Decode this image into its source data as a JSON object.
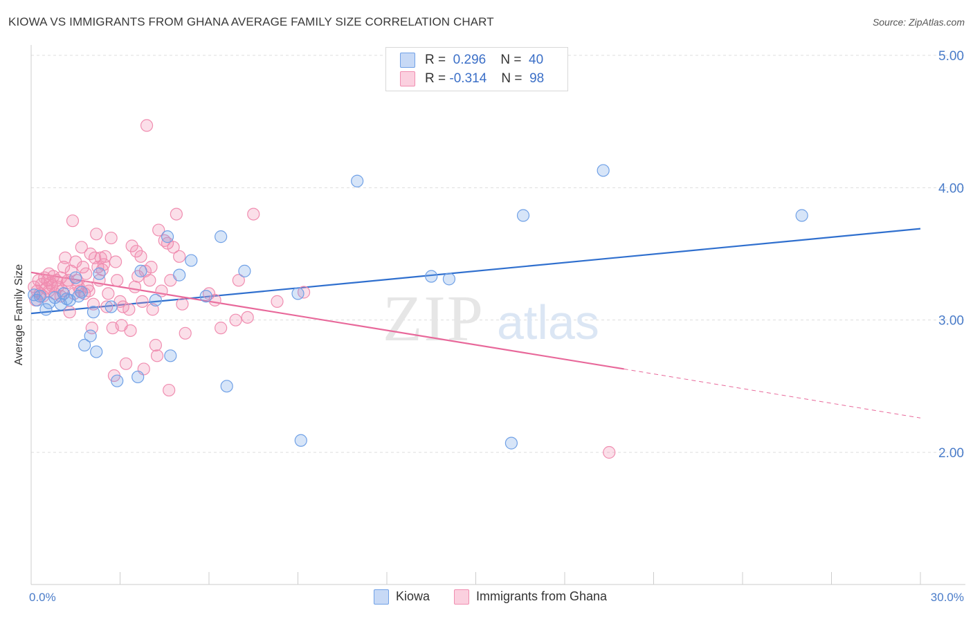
{
  "title": "KIOWA VS IMMIGRANTS FROM GHANA AVERAGE FAMILY SIZE CORRELATION CHART",
  "source": "Source: ZipAtlas.com",
  "watermark": {
    "zip": "ZIP",
    "atlas": "atlas"
  },
  "legend_top": {
    "rows": [
      {
        "r_label": "R =",
        "r_value": "0.296",
        "n_label": "N =",
        "n_value": "40",
        "color": "#6fa0e6"
      },
      {
        "r_label": "R =",
        "r_value": "-0.314",
        "n_label": "N =",
        "n_value": "98",
        "color": "#f08db0"
      }
    ]
  },
  "legend_bottom": [
    {
      "label": "Kiowa",
      "color": "#6fa0e6"
    },
    {
      "label": "Immigrants from Ghana",
      "color": "#f08db0"
    }
  ],
  "chart_data": {
    "type": "scatter",
    "title": "KIOWA VS IMMIGRANTS FROM GHANA AVERAGE FAMILY SIZE CORRELATION CHART",
    "xlabel": "",
    "ylabel": "Average Family Size",
    "xlim": [
      0,
      30
    ],
    "ylim": [
      1.0,
      5.2
    ],
    "x_tick_labels": [
      "0.0%",
      "30.0%"
    ],
    "y_ticks": [
      2.0,
      3.0,
      4.0,
      5.0
    ],
    "y_tick_labels": [
      "2.00",
      "3.00",
      "4.00",
      "5.00"
    ],
    "grid": true,
    "series": [
      {
        "name": "Kiowa",
        "color": "#6fa0e6",
        "points": [
          [
            0.2,
            3.15
          ],
          [
            0.3,
            3.18
          ],
          [
            0.5,
            3.08
          ],
          [
            0.6,
            3.13
          ],
          [
            0.8,
            3.17
          ],
          [
            1.0,
            3.12
          ],
          [
            1.1,
            3.2
          ],
          [
            1.2,
            3.16
          ],
          [
            1.3,
            3.15
          ],
          [
            1.5,
            3.32
          ],
          [
            1.6,
            3.18
          ],
          [
            1.7,
            3.21
          ],
          [
            1.8,
            2.81
          ],
          [
            2.0,
            2.88
          ],
          [
            2.1,
            3.06
          ],
          [
            2.2,
            2.76
          ],
          [
            2.3,
            3.35
          ],
          [
            2.7,
            3.1
          ],
          [
            2.9,
            2.54
          ],
          [
            3.6,
            2.57
          ],
          [
            3.7,
            3.37
          ],
          [
            4.2,
            3.15
          ],
          [
            4.6,
            3.63
          ],
          [
            4.7,
            2.73
          ],
          [
            5.0,
            3.34
          ],
          [
            5.4,
            3.45
          ],
          [
            5.9,
            3.18
          ],
          [
            6.4,
            3.63
          ],
          [
            6.6,
            2.5
          ],
          [
            7.2,
            3.37
          ],
          [
            9.0,
            3.2
          ],
          [
            9.1,
            2.09
          ],
          [
            11.0,
            4.05
          ],
          [
            13.5,
            3.33
          ],
          [
            14.1,
            3.31
          ],
          [
            16.2,
            2.07
          ],
          [
            16.6,
            3.79
          ],
          [
            19.3,
            4.13
          ],
          [
            26.0,
            3.79
          ],
          [
            0.1,
            3.19
          ]
        ]
      },
      {
        "name": "Immigrants from Ghana",
        "color": "#f08db0",
        "points": [
          [
            0.1,
            3.25
          ],
          [
            0.2,
            3.22
          ],
          [
            0.25,
            3.3
          ],
          [
            0.3,
            3.2
          ],
          [
            0.35,
            3.27
          ],
          [
            0.4,
            3.18
          ],
          [
            0.45,
            3.32
          ],
          [
            0.5,
            3.24
          ],
          [
            0.55,
            3.3
          ],
          [
            0.6,
            3.22
          ],
          [
            0.65,
            3.28
          ],
          [
            0.7,
            3.26
          ],
          [
            0.75,
            3.33
          ],
          [
            0.8,
            3.2
          ],
          [
            0.85,
            3.3
          ],
          [
            0.9,
            3.25
          ],
          [
            1.0,
            3.32
          ],
          [
            1.05,
            3.22
          ],
          [
            1.1,
            3.4
          ],
          [
            1.15,
            3.47
          ],
          [
            1.2,
            3.28
          ],
          [
            1.25,
            3.3
          ],
          [
            1.3,
            3.06
          ],
          [
            1.35,
            3.37
          ],
          [
            1.4,
            3.75
          ],
          [
            1.45,
            3.2
          ],
          [
            1.5,
            3.44
          ],
          [
            1.55,
            3.3
          ],
          [
            1.6,
            3.25
          ],
          [
            1.65,
            3.22
          ],
          [
            1.7,
            3.55
          ],
          [
            1.75,
            3.4
          ],
          [
            1.8,
            3.2
          ],
          [
            1.85,
            3.35
          ],
          [
            1.9,
            3.25
          ],
          [
            1.95,
            3.22
          ],
          [
            2.0,
            3.5
          ],
          [
            2.05,
            2.94
          ],
          [
            2.1,
            3.12
          ],
          [
            2.15,
            3.47
          ],
          [
            2.2,
            3.65
          ],
          [
            2.25,
            3.4
          ],
          [
            2.3,
            3.3
          ],
          [
            2.4,
            3.38
          ],
          [
            2.45,
            3.42
          ],
          [
            2.5,
            3.48
          ],
          [
            2.55,
            3.1
          ],
          [
            2.6,
            3.2
          ],
          [
            2.7,
            3.62
          ],
          [
            2.75,
            2.94
          ],
          [
            2.8,
            2.58
          ],
          [
            2.85,
            3.44
          ],
          [
            2.9,
            3.3
          ],
          [
            3.0,
            3.14
          ],
          [
            3.05,
            2.96
          ],
          [
            3.1,
            3.1
          ],
          [
            3.2,
            2.67
          ],
          [
            3.3,
            3.08
          ],
          [
            3.35,
            2.92
          ],
          [
            3.4,
            3.56
          ],
          [
            3.5,
            3.25
          ],
          [
            3.55,
            3.52
          ],
          [
            3.6,
            3.33
          ],
          [
            3.7,
            3.48
          ],
          [
            3.75,
            3.14
          ],
          [
            3.8,
            2.63
          ],
          [
            3.85,
            3.37
          ],
          [
            3.9,
            4.47
          ],
          [
            4.0,
            3.3
          ],
          [
            4.05,
            3.4
          ],
          [
            4.1,
            3.08
          ],
          [
            4.2,
            2.81
          ],
          [
            4.25,
            2.73
          ],
          [
            4.3,
            3.68
          ],
          [
            4.4,
            3.22
          ],
          [
            4.5,
            3.6
          ],
          [
            4.6,
            3.58
          ],
          [
            4.65,
            2.47
          ],
          [
            4.7,
            3.3
          ],
          [
            4.8,
            3.55
          ],
          [
            4.9,
            3.8
          ],
          [
            5.0,
            3.48
          ],
          [
            5.1,
            3.12
          ],
          [
            5.2,
            2.9
          ],
          [
            6.0,
            3.2
          ],
          [
            6.2,
            3.15
          ],
          [
            6.4,
            2.94
          ],
          [
            6.9,
            3.0
          ],
          [
            7.0,
            3.3
          ],
          [
            7.3,
            3.02
          ],
          [
            7.5,
            3.8
          ],
          [
            8.3,
            3.14
          ],
          [
            9.2,
            3.21
          ],
          [
            19.5,
            2.0
          ],
          [
            0.15,
            3.15
          ],
          [
            0.6,
            3.35
          ],
          [
            1.0,
            3.18
          ],
          [
            2.35,
            3.47
          ]
        ]
      }
    ],
    "trendlines": [
      {
        "series": "Kiowa",
        "x0": 0,
        "y0": 3.05,
        "x1": 30,
        "y1": 3.69,
        "style": "solid"
      },
      {
        "series": "Immigrants from Ghana",
        "x0": 0,
        "y0": 3.36,
        "x1": 20,
        "y1": 2.63,
        "style": "solid"
      },
      {
        "series": "Immigrants from Ghana",
        "x0": 20,
        "y0": 2.63,
        "x1": 30,
        "y1": 2.26,
        "style": "dashed"
      }
    ]
  }
}
